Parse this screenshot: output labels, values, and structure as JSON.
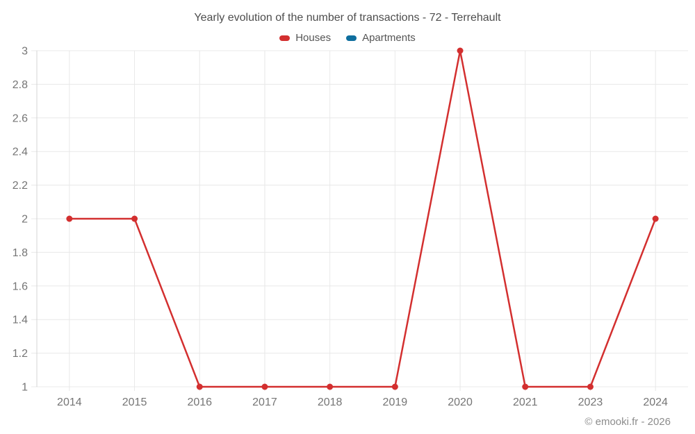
{
  "chart_data": {
    "type": "line",
    "title": "Yearly evolution of the number of transactions - 72 - Terrehault",
    "categories": [
      "2014",
      "2015",
      "2016",
      "2017",
      "2018",
      "2019",
      "2020",
      "2021",
      "2023",
      "2024"
    ],
    "series": [
      {
        "name": "Houses",
        "color": "#d32f2f",
        "values": [
          2,
          2,
          1,
          1,
          1,
          1,
          3,
          1,
          1,
          2
        ]
      },
      {
        "name": "Apartments",
        "color": "#0e6e9e",
        "values": []
      }
    ],
    "xlabel": "",
    "ylabel": "",
    "ylim": [
      1,
      3
    ],
    "y_ticks": [
      1,
      1.2,
      1.4,
      1.6,
      1.8,
      2,
      2.2,
      2.4,
      2.6,
      2.8,
      3
    ],
    "grid": true,
    "legend_position": "top"
  },
  "footer": {
    "credit": "© emooki.fr - 2026"
  },
  "colors": {
    "grid": "#e8e8e8",
    "axis": "#d4d4d4",
    "tick_label": "#757575",
    "title": "#4d4d4d",
    "footer": "#8c8c8c"
  }
}
